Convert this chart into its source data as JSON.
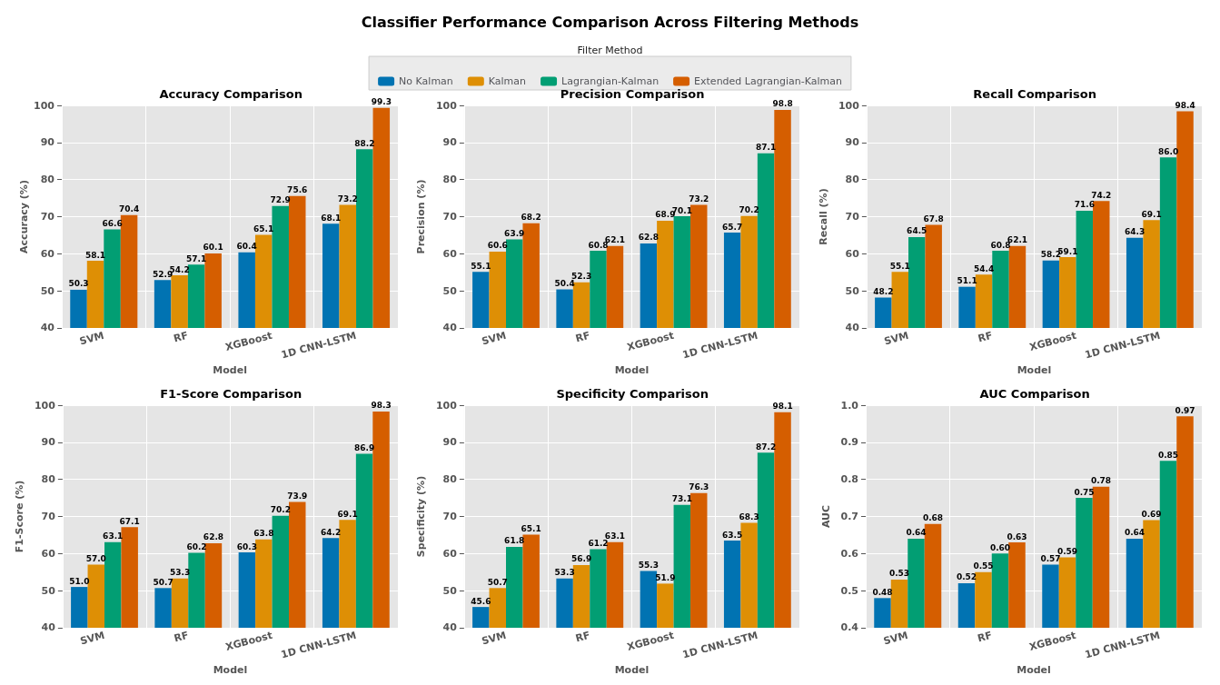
{
  "chart_data": [
    {
      "type": "bar",
      "title": "Accuracy Comparison",
      "annotations": [
        "Classifier Performance Comparison Across Filtering Methods"
      ],
      "xlabel": "Model",
      "ylabel": "Accuracy (%)",
      "legend": "top",
      "legend_title": "Filter Method",
      "grid": true,
      "ylim": [
        40,
        100
      ],
      "yticks": [
        40,
        50,
        60,
        70,
        80,
        90,
        100
      ],
      "categories": [
        "SVM",
        "RF",
        "XGBoost",
        "1D CNN-LSTM"
      ],
      "series": [
        {
          "name": "No Kalman",
          "color": "#0173b2",
          "values": [
            50.3,
            52.9,
            60.4,
            68.1
          ],
          "value_labels": [
            "50.3",
            "52.9",
            "60.4",
            "68.1"
          ]
        },
        {
          "name": "Kalman",
          "color": "#de8f05",
          "values": [
            58.1,
            54.2,
            65.1,
            73.2
          ],
          "value_labels": [
            "58.1",
            "54.2",
            "65.1",
            "73.2"
          ]
        },
        {
          "name": "Lagrangian-Kalman",
          "color": "#029e73",
          "values": [
            66.6,
            57.1,
            72.9,
            88.2
          ],
          "value_labels": [
            "66.6",
            "57.1",
            "72.9",
            "88.2"
          ]
        },
        {
          "name": "Extended Lagrangian-Kalman",
          "color": "#d55e00",
          "values": [
            70.4,
            60.1,
            75.6,
            99.3
          ],
          "value_labels": [
            "70.4",
            "60.1",
            "75.6",
            "99.3"
          ]
        }
      ]
    },
    {
      "type": "bar",
      "title": "Precision Comparison",
      "xlabel": "Model",
      "ylabel": "Precision (%)",
      "grid": true,
      "ylim": [
        40,
        100
      ],
      "yticks": [
        40,
        50,
        60,
        70,
        80,
        90,
        100
      ],
      "categories": [
        "SVM",
        "RF",
        "XGBoost",
        "1D CNN-LSTM"
      ],
      "series": [
        {
          "color": "#0173b2",
          "values": [
            55.1,
            50.4,
            62.8,
            65.7
          ],
          "value_labels": [
            "55.1",
            "50.4",
            "62.8",
            "65.7"
          ]
        },
        {
          "color": "#de8f05",
          "values": [
            60.6,
            52.3,
            68.9,
            70.2
          ],
          "value_labels": [
            "60.6",
            "52.3",
            "68.9",
            "70.2"
          ]
        },
        {
          "color": "#029e73",
          "values": [
            63.9,
            60.8,
            70.1,
            87.1
          ],
          "value_labels": [
            "63.9",
            "60.8",
            "70.1",
            "87.1"
          ]
        },
        {
          "color": "#d55e00",
          "values": [
            68.2,
            62.1,
            73.2,
            98.8
          ],
          "value_labels": [
            "68.2",
            "62.1",
            "73.2",
            "98.8"
          ]
        }
      ]
    },
    {
      "type": "bar",
      "title": "Recall Comparison",
      "xlabel": "Model",
      "ylabel": "Recall (%)",
      "grid": true,
      "ylim": [
        40,
        100
      ],
      "yticks": [
        40,
        50,
        60,
        70,
        80,
        90,
        100
      ],
      "categories": [
        "SVM",
        "RF",
        "XGBoost",
        "1D CNN-LSTM"
      ],
      "series": [
        {
          "color": "#0173b2",
          "values": [
            48.2,
            51.1,
            58.2,
            64.3
          ],
          "value_labels": [
            "48.2",
            "51.1",
            "58.2",
            "64.3"
          ]
        },
        {
          "color": "#de8f05",
          "values": [
            55.1,
            54.4,
            59.1,
            69.1
          ],
          "value_labels": [
            "55.1",
            "54.4",
            "59.1",
            "69.1"
          ]
        },
        {
          "color": "#029e73",
          "values": [
            64.5,
            60.8,
            71.6,
            86.0
          ],
          "value_labels": [
            "64.5",
            "60.8",
            "71.6",
            "86.0"
          ]
        },
        {
          "color": "#d55e00",
          "values": [
            67.8,
            62.1,
            74.2,
            98.4
          ],
          "value_labels": [
            "67.8",
            "62.1",
            "74.2",
            "98.4"
          ]
        }
      ]
    },
    {
      "type": "bar",
      "title": "F1-Score Comparison",
      "xlabel": "Model",
      "ylabel": "F1-Score (%)",
      "grid": true,
      "ylim": [
        40,
        100
      ],
      "yticks": [
        40,
        50,
        60,
        70,
        80,
        90,
        100
      ],
      "categories": [
        "SVM",
        "RF",
        "XGBoost",
        "1D CNN-LSTM"
      ],
      "series": [
        {
          "color": "#0173b2",
          "values": [
            51.0,
            50.7,
            60.3,
            64.2
          ],
          "value_labels": [
            "51.0",
            "50.7",
            "60.3",
            "64.2"
          ]
        },
        {
          "color": "#de8f05",
          "values": [
            57.0,
            53.3,
            63.8,
            69.1
          ],
          "value_labels": [
            "57.0",
            "53.3",
            "63.8",
            "69.1"
          ]
        },
        {
          "color": "#029e73",
          "values": [
            63.1,
            60.2,
            70.2,
            86.9
          ],
          "value_labels": [
            "63.1",
            "60.2",
            "70.2",
            "86.9"
          ]
        },
        {
          "color": "#d55e00",
          "values": [
            67.1,
            62.8,
            73.9,
            98.3
          ],
          "value_labels": [
            "67.1",
            "62.8",
            "73.9",
            "98.3"
          ]
        }
      ]
    },
    {
      "type": "bar",
      "title": "Specificity Comparison",
      "xlabel": "Model",
      "ylabel": "Specificity (%)",
      "grid": true,
      "ylim": [
        40,
        100
      ],
      "yticks": [
        40,
        50,
        60,
        70,
        80,
        90,
        100
      ],
      "categories": [
        "SVM",
        "RF",
        "XGBoost",
        "1D CNN-LSTM"
      ],
      "series": [
        {
          "color": "#0173b2",
          "values": [
            45.6,
            53.3,
            55.3,
            63.5
          ],
          "value_labels": [
            "45.6",
            "53.3",
            "55.3",
            "63.5"
          ]
        },
        {
          "color": "#de8f05",
          "values": [
            50.7,
            56.9,
            51.9,
            68.3
          ],
          "value_labels": [
            "50.7",
            "56.9",
            "51.9",
            "68.3"
          ]
        },
        {
          "color": "#029e73",
          "values": [
            61.8,
            61.2,
            73.1,
            87.2
          ],
          "value_labels": [
            "61.8",
            "61.2",
            "73.1",
            "87.2"
          ]
        },
        {
          "color": "#d55e00",
          "values": [
            65.1,
            63.1,
            76.3,
            98.1
          ],
          "value_labels": [
            "65.1",
            "63.1",
            "76.3",
            "98.1"
          ]
        }
      ]
    },
    {
      "type": "bar",
      "title": "AUC Comparison",
      "xlabel": "Model",
      "ylabel": "AUC",
      "grid": true,
      "ylim": [
        0.4,
        1.0
      ],
      "yticks": [
        0.4,
        0.5,
        0.6,
        0.7,
        0.8,
        0.9,
        {
          "value": 1,
          "label": "1.0"
        }
      ],
      "categories": [
        "SVM",
        "RF",
        "XGBoost",
        "1D CNN-LSTM"
      ],
      "series": [
        {
          "color": "#0173b2",
          "values": [
            0.48,
            0.52,
            0.57,
            0.64
          ],
          "value_labels": [
            "0.48",
            "0.52",
            "0.57",
            "0.64"
          ]
        },
        {
          "color": "#de8f05",
          "values": [
            0.53,
            0.55,
            0.59,
            0.69
          ],
          "value_labels": [
            "0.53",
            "0.55",
            "0.59",
            "0.69"
          ]
        },
        {
          "color": "#029e73",
          "values": [
            0.64,
            0.6,
            0.75,
            0.85
          ],
          "value_labels": [
            "0.64",
            "0.60",
            "0.75",
            "0.85"
          ]
        },
        {
          "color": "#d55e00",
          "values": [
            0.68,
            0.63,
            0.78,
            0.97
          ],
          "value_labels": [
            "0.68",
            "0.63",
            "0.78",
            "0.97"
          ]
        }
      ]
    }
  ]
}
